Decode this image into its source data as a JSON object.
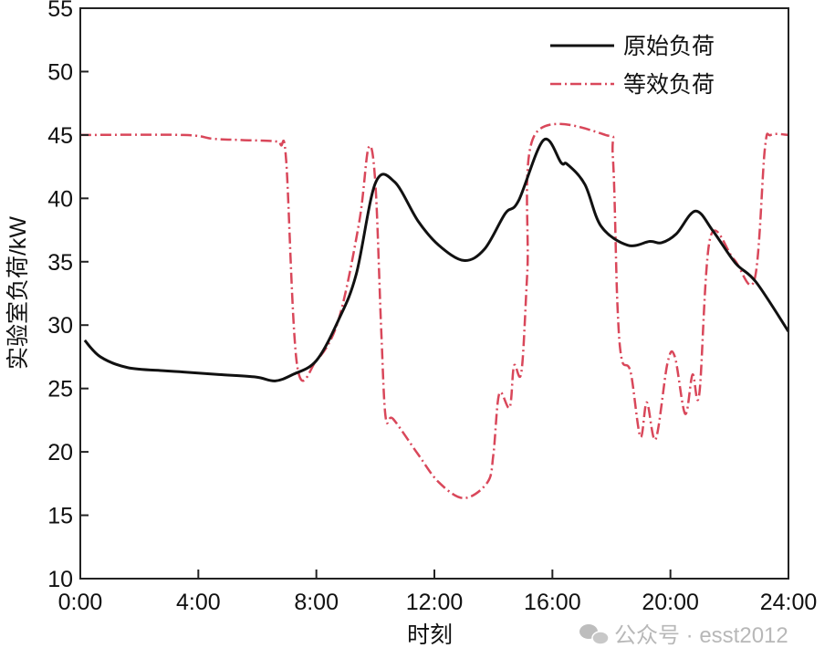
{
  "chart_data": {
    "type": "line",
    "title": "",
    "xlabel": "时刻",
    "ylabel": "实验室负荷/kW",
    "xlim": [
      0,
      24
    ],
    "ylim": [
      10,
      55
    ],
    "x_ticks": [
      0,
      4,
      8,
      12,
      16,
      20,
      24
    ],
    "x_tick_labels": [
      "0:00",
      "4:00",
      "8:00",
      "12:00",
      "16:00",
      "20:00",
      "24:00"
    ],
    "y_ticks": [
      10,
      15,
      20,
      25,
      30,
      35,
      40,
      45,
      50,
      55
    ],
    "y_tick_labels": [
      "10",
      "15",
      "20",
      "25",
      "30",
      "35",
      "40",
      "45",
      "50",
      "55"
    ],
    "grid": false,
    "legend_position": "top-right",
    "series": [
      {
        "name": "原始负荷",
        "color": "#111111",
        "style": "solid",
        "x": [
          0.15,
          0.68,
          1.6,
          2.85,
          3.5,
          4.7,
          5.95,
          6.6,
          7.2,
          8.0,
          8.75,
          9.35,
          10.0,
          10.65,
          11.45,
          12.15,
          13.0,
          13.7,
          14.4,
          14.85,
          15.7,
          16.3,
          16.5,
          17.1,
          17.65,
          18.55,
          19.3,
          19.7,
          20.2,
          20.85,
          21.45,
          22.2,
          22.9,
          24.0
        ],
        "y": [
          28.8,
          27.5,
          26.65,
          26.4,
          26.3,
          26.1,
          25.9,
          25.6,
          26.1,
          27.2,
          30.4,
          34.0,
          41.2,
          41.3,
          38.2,
          36.3,
          35.1,
          36.0,
          38.8,
          39.8,
          44.6,
          42.8,
          42.7,
          41.1,
          37.8,
          36.3,
          36.6,
          36.5,
          37.2,
          39.0,
          37.4,
          34.9,
          33.4,
          29.5
        ]
      },
      {
        "name": "等效负荷",
        "color": "#d9475a",
        "style": "dashdot",
        "x": [
          0,
          3.5,
          4.5,
          5.5,
          6.6,
          6.8,
          6.98,
          7.35,
          8.0,
          8.75,
          9.45,
          9.77,
          10.0,
          10.2,
          10.35,
          10.6,
          11.45,
          12.15,
          13.0,
          13.8,
          14.0,
          14.2,
          14.55,
          14.7,
          14.95,
          15.15,
          15.4,
          17.8,
          18.05,
          18.2,
          18.35,
          18.65,
          18.98,
          19.2,
          19.5,
          19.9,
          20.15,
          20.5,
          20.75,
          20.98,
          21.35,
          22.15,
          22.85,
          23.2,
          23.4,
          24.0
        ],
        "y": [
          45,
          45,
          44.7,
          44.6,
          44.5,
          44.2,
          42.9,
          26.8,
          27.2,
          30.4,
          38.1,
          44.0,
          41.2,
          29.5,
          22.7,
          22.6,
          19.8,
          17.6,
          16.35,
          17.6,
          19.8,
          24.6,
          23.5,
          26.8,
          26.3,
          34.2,
          45,
          45,
          43.2,
          31.8,
          27.3,
          26.3,
          21.2,
          23.9,
          21.0,
          27.0,
          27.5,
          23.0,
          26.1,
          24.6,
          36.9,
          35.2,
          33.6,
          43.9,
          45,
          45
        ]
      }
    ]
  },
  "watermark": "公众号 · esst2012"
}
